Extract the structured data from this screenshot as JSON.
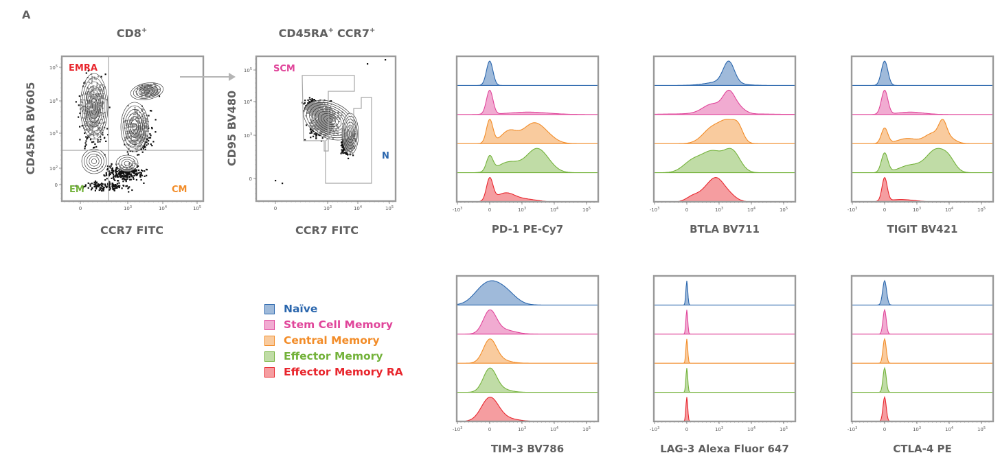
{
  "figure_label": "A",
  "colors": {
    "naive": "#2a66ad",
    "scm": "#e0459a",
    "cm": "#f28c28",
    "em": "#73b23a",
    "emra": "#e8262d",
    "frame": "#9a9a9a",
    "gate": "#a6a6a6",
    "arrow": "#b5b5b5"
  },
  "legend": [
    {
      "label": "Naïve",
      "key": "naive"
    },
    {
      "label": "Stem Cell Memory",
      "key": "scm"
    },
    {
      "label": "Central Memory",
      "key": "cm"
    },
    {
      "label": "Effector Memory",
      "key": "em"
    },
    {
      "label": "Effector Memory RA",
      "key": "emra"
    }
  ],
  "chart_data": [
    {
      "type": "scatter",
      "title": "CD8",
      "title_sup": "+",
      "xlabel": "CCR7 FITC",
      "ylabel": "CD45RA BV605",
      "x_ticks": [
        {
          "v": 0,
          "label": "0"
        },
        {
          "v": 3,
          "label": "10",
          "sup": "3"
        },
        {
          "v": 4,
          "label": "10",
          "sup": "4"
        },
        {
          "v": 5,
          "label": "10",
          "sup": "5"
        }
      ],
      "y_ticks": [
        {
          "v": 0,
          "label": "0"
        },
        {
          "v": 2,
          "label": "10",
          "sup": "2"
        },
        {
          "v": 3,
          "label": "10",
          "sup": "3"
        },
        {
          "v": 4,
          "label": "10",
          "sup": "4"
        },
        {
          "v": 5,
          "label": "10",
          "sup": "5"
        }
      ],
      "gates": [
        {
          "label": "EMRA",
          "key": "emra"
        },
        {
          "label": "EM",
          "key": "em"
        },
        {
          "label": "CM",
          "key": "cm"
        }
      ]
    },
    {
      "type": "scatter",
      "title": "CD45RA",
      "title_sup": "+",
      "title2": "CCR7",
      "title2_sup": "+",
      "xlabel": "CCR7 FITC",
      "ylabel": "CD95 BV480",
      "x_ticks": [
        {
          "v": 0,
          "label": "0"
        },
        {
          "v": 3,
          "label": "10",
          "sup": "3"
        },
        {
          "v": 4,
          "label": "10",
          "sup": "4"
        },
        {
          "v": 5,
          "label": "10",
          "sup": "5"
        }
      ],
      "y_ticks": [
        {
          "v": 0,
          "label": "0"
        },
        {
          "v": 3,
          "label": "10",
          "sup": "3"
        },
        {
          "v": 4,
          "label": "10",
          "sup": "4"
        },
        {
          "v": 5,
          "label": "10",
          "sup": "5"
        }
      ],
      "gates": [
        {
          "label": "SCM",
          "key": "scm"
        },
        {
          "label": "N",
          "key": "naive"
        }
      ]
    }
  ],
  "histograms": {
    "type": "area",
    "series_order": [
      "naive",
      "scm",
      "cm",
      "em",
      "emra"
    ],
    "x_ticks": [
      {
        "v": -1,
        "label": "-10",
        "sup": "3"
      },
      {
        "v": 0,
        "label": "0"
      },
      {
        "v": 1,
        "label": "10",
        "sup": "3"
      },
      {
        "v": 2,
        "label": "10",
        "sup": "4"
      },
      {
        "v": 3,
        "label": "10",
        "sup": "5"
      }
    ],
    "panels": [
      {
        "xlabel": "PD-1 PE-Cy7",
        "series": [
          [
            [
              0.0,
              1.0,
              0.1
            ]
          ],
          [
            [
              0.0,
              1.0,
              0.1
            ],
            [
              1.2,
              0.1,
              0.6
            ]
          ],
          [
            [
              0.0,
              0.85,
              0.1
            ],
            [
              0.6,
              0.45,
              0.25
            ],
            [
              1.3,
              0.6,
              0.3
            ],
            [
              1.7,
              0.3,
              0.3
            ]
          ],
          [
            [
              0.0,
              0.7,
              0.1
            ],
            [
              0.6,
              0.5,
              0.35
            ],
            [
              1.4,
              0.85,
              0.3
            ],
            [
              1.7,
              0.4,
              0.3
            ]
          ],
          [
            [
              0.0,
              1.0,
              0.1
            ],
            [
              0.5,
              0.4,
              0.3
            ],
            [
              1.2,
              0.1,
              0.3
            ]
          ]
        ]
      },
      {
        "xlabel": "BTLA BV711",
        "series": [
          [
            [
              1.3,
              1.0,
              0.17
            ],
            [
              1.1,
              0.18,
              0.45
            ]
          ],
          [
            [
              1.3,
              1.0,
              0.18
            ],
            [
              0.8,
              0.5,
              0.3
            ],
            [
              1.6,
              0.3,
              0.2
            ],
            [
              0.9,
              0.05,
              1.2
            ]
          ],
          [
            [
              0.8,
              0.7,
              0.3
            ],
            [
              1.3,
              0.85,
              0.25
            ],
            [
              1.6,
              0.5,
              0.15
            ]
          ],
          [
            [
              0.2,
              0.4,
              0.3
            ],
            [
              0.8,
              0.65,
              0.3
            ],
            [
              1.4,
              0.7,
              0.25
            ]
          ],
          [
            [
              0.2,
              0.35,
              0.2
            ],
            [
              0.6,
              0.6,
              0.2
            ],
            [
              0.9,
              0.95,
              0.2
            ],
            [
              1.2,
              0.6,
              0.25
            ]
          ]
        ]
      },
      {
        "xlabel": "TIGIT BV421",
        "series": [
          [
            [
              0.0,
              1.0,
              0.1
            ]
          ],
          [
            [
              0.0,
              1.0,
              0.1
            ],
            [
              0.8,
              0.1,
              0.4
            ]
          ],
          [
            [
              0.0,
              0.9,
              0.1
            ],
            [
              0.7,
              0.3,
              0.3
            ],
            [
              1.5,
              0.6,
              0.25
            ],
            [
              1.8,
              0.95,
              0.12
            ],
            [
              2.0,
              0.3,
              0.2
            ]
          ],
          [
            [
              0.0,
              0.65,
              0.1
            ],
            [
              0.8,
              0.25,
              0.35
            ],
            [
              1.6,
              0.75,
              0.3
            ],
            [
              2.0,
              0.3,
              0.2
            ]
          ],
          [
            [
              0.0,
              1.0,
              0.08
            ],
            [
              0.5,
              0.1,
              0.4
            ]
          ]
        ]
      },
      {
        "xlabel": "TIM-3 BV786",
        "series": [
          [
            [
              0.1,
              1.0,
              0.38
            ],
            [
              -0.3,
              0.3,
              0.3
            ],
            [
              0.6,
              0.3,
              0.3
            ]
          ],
          [
            [
              0.0,
              1.0,
              0.2
            ],
            [
              0.4,
              0.2,
              0.35
            ]
          ],
          [
            [
              0.0,
              1.0,
              0.2
            ],
            [
              0.3,
              0.15,
              0.3
            ]
          ],
          [
            [
              0.0,
              1.0,
              0.2
            ],
            [
              0.3,
              0.15,
              0.3
            ]
          ],
          [
            [
              0.0,
              1.0,
              0.26
            ],
            [
              0.4,
              0.15,
              0.4
            ]
          ]
        ]
      },
      {
        "xlabel": "LAG-3 Alexa Fluor 647",
        "series": [
          [
            [
              0.0,
              1.0,
              0.028
            ]
          ],
          [
            [
              0.0,
              1.0,
              0.028
            ]
          ],
          [
            [
              0.0,
              1.0,
              0.028
            ]
          ],
          [
            [
              0.0,
              1.0,
              0.028
            ]
          ],
          [
            [
              0.0,
              1.0,
              0.028
            ]
          ]
        ]
      },
      {
        "xlabel": "CTLA-4 PE",
        "series": [
          [
            [
              0.0,
              1.0,
              0.06
            ]
          ],
          [
            [
              0.0,
              1.0,
              0.05
            ]
          ],
          [
            [
              0.0,
              1.0,
              0.05
            ]
          ],
          [
            [
              0.0,
              1.0,
              0.05
            ]
          ],
          [
            [
              0.0,
              1.0,
              0.05
            ]
          ]
        ]
      }
    ]
  }
}
